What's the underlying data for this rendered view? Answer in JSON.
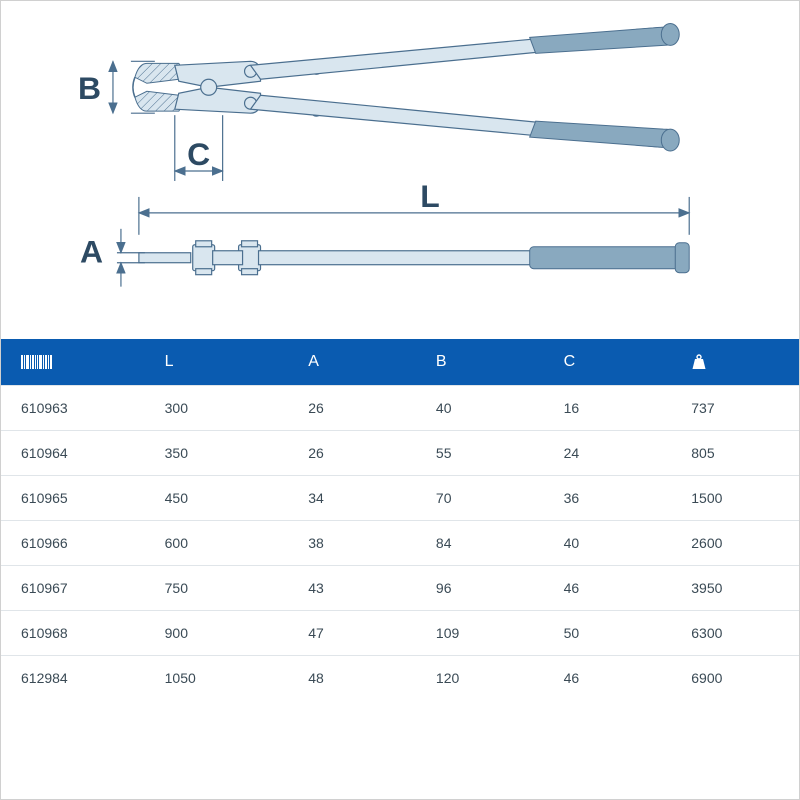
{
  "diagram": {
    "labels": {
      "A": "A",
      "B": "B",
      "C": "C",
      "L": "L"
    },
    "colors": {
      "stroke": "#4b6f8f",
      "fill_light": "#d9e6ef",
      "grip": "#89a9bf",
      "text": "#2d4a63"
    },
    "label_fontsize": 32
  },
  "table": {
    "header_bg": "#0a5bb0",
    "header_fg": "#ffffff",
    "row_border": "#e0e5e9",
    "cell_fg": "#3a4a55",
    "fontsize_header": 16,
    "fontsize_cell": 14,
    "columns": [
      {
        "key": "code",
        "label_kind": "barcode-icon",
        "width": "18%"
      },
      {
        "key": "L",
        "label": "L",
        "width": "18%"
      },
      {
        "key": "A",
        "label": "A",
        "width": "16%"
      },
      {
        "key": "B",
        "label": "B",
        "width": "16%"
      },
      {
        "key": "C",
        "label": "C",
        "width": "16%"
      },
      {
        "key": "weight",
        "label_kind": "weight-icon",
        "width": "16%"
      }
    ],
    "rows": [
      {
        "code": "610963",
        "L": "300",
        "A": "26",
        "B": "40",
        "C": "16",
        "weight": "737"
      },
      {
        "code": "610964",
        "L": "350",
        "A": "26",
        "B": "55",
        "C": "24",
        "weight": "805"
      },
      {
        "code": "610965",
        "L": "450",
        "A": "34",
        "B": "70",
        "C": "36",
        "weight": "1500"
      },
      {
        "code": "610966",
        "L": "600",
        "A": "38",
        "B": "84",
        "C": "40",
        "weight": "2600"
      },
      {
        "code": "610967",
        "L": "750",
        "A": "43",
        "B": "96",
        "C": "46",
        "weight": "3950"
      },
      {
        "code": "610968",
        "L": "900",
        "A": "47",
        "B": "109",
        "C": "50",
        "weight": "6300"
      },
      {
        "code": "612984",
        "L": "1050",
        "A": "48",
        "B": "120",
        "C": "46",
        "weight": "6900"
      }
    ]
  }
}
